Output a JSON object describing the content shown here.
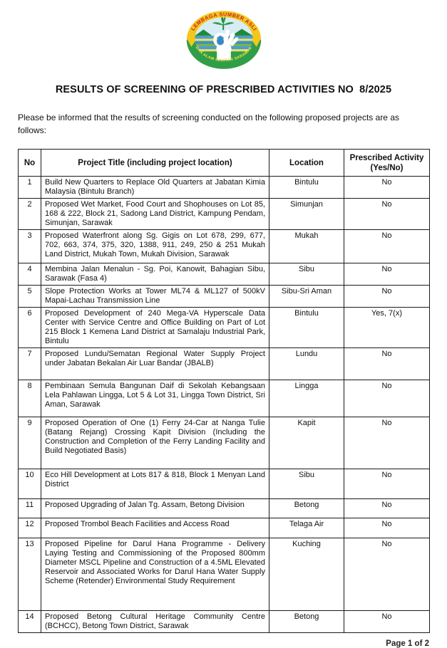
{
  "logo": {
    "top_text": "LEMBAGA SUMBER ASLI",
    "bottom_text": "DAN ALAM SEKITAR SARAWAK",
    "colors": {
      "yellow": "#f3c71b",
      "green": "#2f9e48",
      "dark_green": "#1f8a3c",
      "red_text": "#cf2127",
      "yellow_text": "#ffe14a",
      "blue": "#3a87c8",
      "sky": "#d8ecf6",
      "white": "#ffffff"
    }
  },
  "title": "RESULTS OF SCREENING OF PRESCRIBED ACTIVITIES NO  8/2025",
  "intro": "Please be informed that the results of screening conducted on the following proposed projects are as follows:",
  "table": {
    "headers": {
      "no": "No",
      "title": "Project Title (including project location)",
      "location": "Location",
      "prescribed": "Prescribed Activity (Yes/No)"
    },
    "rows": [
      {
        "no": "1",
        "title": "Build New Quarters to Replace Old Quarters at Jabatan Kimia Malaysia (Bintulu Branch)",
        "location": "Bintulu",
        "prescribed": "No"
      },
      {
        "no": "2",
        "title": "Proposed Wet Market, Food Court and Shophouses on Lot 85, 168 & 222, Block 21, Sadong Land District, Kampung Pendam, Simunjan, Sarawak",
        "location": "Simunjan",
        "prescribed": "No"
      },
      {
        "no": "3",
        "title": "Proposed Waterfront along Sg. Gigis on Lot 678, 299, 677, 702, 663, 374, 375, 320, 1388, 911, 249, 250 & 251 Mukah Land District, Mukah Town, Mukah Division, Sarawak",
        "location": "Mukah",
        "prescribed": "No"
      },
      {
        "no": "4",
        "title": "Membina Jalan Menalun - Sg. Poi, Kanowit, Bahagian Sibu, Sarawak (Fasa 4)",
        "location": "Sibu",
        "prescribed": "No"
      },
      {
        "no": "5",
        "title": "Slope Protection Works at Tower ML74 & ML127 of 500kV Mapai-Lachau Transmission Line",
        "location": "Sibu-Sri Aman",
        "prescribed": "No"
      },
      {
        "no": "6",
        "title": "Proposed Development of 240 Mega-VA Hyperscale Data Center with Service Centre and Office Building on Part of Lot 215 Block 1 Kemena Land District at Samalaju Industrial Park, Bintulu",
        "location": "Bintulu",
        "prescribed": "Yes, 7(x)"
      },
      {
        "no": "7",
        "title": "Proposed Lundu/Sematan Regional Water Supply Project under Jabatan Bekalan Air Luar Bandar (JBALB)",
        "location": "Lundu",
        "prescribed": "No"
      },
      {
        "no": "8",
        "title": "Pembinaan Semula Bangunan Daif di Sekolah Kebangsaan Lela Pahlawan Lingga, Lot 5 & Lot 31, Lingga Town District, Sri Aman, Sarawak",
        "location": "Lingga",
        "prescribed": "No"
      },
      {
        "no": "9",
        "title": "Proposed Operation of One (1) Ferry 24-Car at Nanga Tulie (Batang Rejang) Crossing Kapit Division (Including the Construction and Completion of the Ferry Landing Facility and Build Negotiated Basis)",
        "location": "Kapit",
        "prescribed": "No"
      },
      {
        "no": "10",
        "title": "Eco Hill Development at Lots 817 & 818, Block 1 Menyan Land District",
        "location": "Sibu",
        "prescribed": "No"
      },
      {
        "no": "11",
        "title": "Proposed Upgrading of Jalan Tg. Assam, Betong Division",
        "location": "Betong",
        "prescribed": "No"
      },
      {
        "no": "12",
        "title": "Proposed Trombol Beach Facilities and Access Road",
        "location": "Telaga Air",
        "prescribed": "No"
      },
      {
        "no": "13",
        "title": "Proposed Pipeline for Darul Hana Programme - Delivery Laying Testing and Commissioning of the Proposed 800mm Diameter MSCL Pipeline and Construction of a 4.5ML Elevated Reservoir and Associated Works for Darul Hana Water Supply Scheme (Retender) Environmental Study Requirement",
        "location": "Kuching",
        "prescribed": "No"
      },
      {
        "no": "14",
        "title": "Proposed Betong Cultural Heritage Community Centre (BCHCC), Betong Town District, Sarawak",
        "location": "Betong",
        "prescribed": "No"
      }
    ]
  },
  "footer": {
    "page_label": "Page 1 of 2"
  }
}
